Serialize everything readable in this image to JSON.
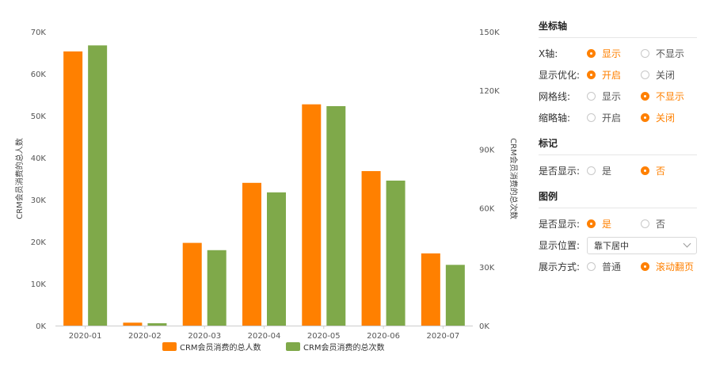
{
  "chart_data": {
    "type": "bar",
    "categories": [
      "2020-01",
      "2020-02",
      "2020-03",
      "2020-04",
      "2020-05",
      "2020-06",
      "2020-07"
    ],
    "series": [
      {
        "name": "CRM会员消费的总人数",
        "axis": "left",
        "color": "#ff8000",
        "values": [
          65300,
          700,
          19700,
          34000,
          52700,
          36800,
          17200
        ]
      },
      {
        "name": "CRM会员消费的总次数",
        "axis": "right",
        "color": "#7fa94a",
        "values": [
          143000,
          1200,
          38500,
          68000,
          112000,
          74000,
          31000
        ]
      }
    ],
    "left_axis": {
      "label": "CRM会员消费的总人数",
      "min": 0,
      "max": 70000,
      "ticks": [
        "0K",
        "10K",
        "20K",
        "30K",
        "40K",
        "50K",
        "60K",
        "70K"
      ]
    },
    "right_axis": {
      "label": "CRM会员消费的总次数",
      "min": 0,
      "max": 150000,
      "ticks": [
        "0K",
        "30K",
        "60K",
        "90K",
        "120K",
        "150K"
      ]
    },
    "grid": false,
    "legend_position": "bottom-center"
  },
  "panel": {
    "axis": {
      "title": "坐标轴",
      "rows": [
        {
          "label": "X轴:",
          "options": [
            "显示",
            "不显示"
          ],
          "selected": 0
        },
        {
          "label": "显示优化:",
          "options": [
            "开启",
            "关闭"
          ],
          "selected": 0
        },
        {
          "label": "网格线:",
          "options": [
            "显示",
            "不显示"
          ],
          "selected": 1
        },
        {
          "label": "缩略轴:",
          "options": [
            "开启",
            "关闭"
          ],
          "selected": 1
        }
      ]
    },
    "marker": {
      "title": "标记",
      "rows": [
        {
          "label": "是否显示:",
          "options": [
            "是",
            "否"
          ],
          "selected": 1
        }
      ]
    },
    "legend": {
      "title": "图例",
      "show_row": {
        "label": "是否显示:",
        "options": [
          "是",
          "否"
        ],
        "selected": 0
      },
      "position_row": {
        "label": "显示位置:",
        "value": "靠下居中"
      },
      "mode_row": {
        "label": "展示方式:",
        "options": [
          "普通",
          "滚动翻页"
        ],
        "selected": 1
      }
    }
  }
}
